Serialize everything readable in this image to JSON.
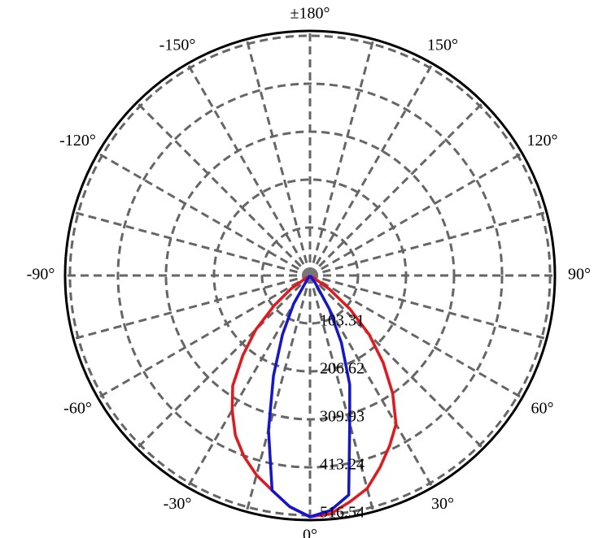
{
  "chart_data": {
    "type": "polar",
    "thetaticks": [
      {
        "value": 0,
        "label": "0°"
      },
      {
        "value": 30,
        "label": "30°"
      },
      {
        "value": 60,
        "label": "60°"
      },
      {
        "value": 90,
        "label": "90°"
      },
      {
        "value": 120,
        "label": "120°"
      },
      {
        "value": 150,
        "label": "150°"
      },
      {
        "value": 180,
        "label": "±180°"
      },
      {
        "value": -150,
        "label": "-150°"
      },
      {
        "value": -120,
        "label": "-120°"
      },
      {
        "value": -90,
        "label": "-90°"
      },
      {
        "value": -60,
        "label": "-60°"
      },
      {
        "value": -30,
        "label": "-30°"
      }
    ],
    "rlim": [
      0,
      527
    ],
    "rticks": [
      103.31,
      206.62,
      309.93,
      413.24,
      516.54
    ],
    "grid": true,
    "theta": [
      -60,
      -55,
      -50,
      -45,
      -40,
      -35,
      -30,
      -25,
      -20,
      -15,
      -10,
      -5,
      0,
      5,
      10,
      15,
      20,
      25,
      30,
      35,
      40,
      45,
      50,
      55,
      60
    ],
    "series": [
      {
        "color": "#e8161b",
        "values": [
          5,
          50,
          100,
          165,
          225,
          290,
          335,
          380,
          415,
          445,
          470,
          500,
          520,
          515,
          495,
          475,
          440,
          405,
          370,
          310,
          245,
          180,
          112,
          50,
          5
        ]
      },
      {
        "color": "#1414d8",
        "values": [
          0,
          0,
          0,
          0,
          0,
          10,
          70,
          140,
          230,
          345,
          470,
          500,
          520,
          508,
          480,
          330,
          250,
          160,
          83,
          20,
          0,
          0,
          0,
          0,
          0
        ]
      }
    ]
  }
}
